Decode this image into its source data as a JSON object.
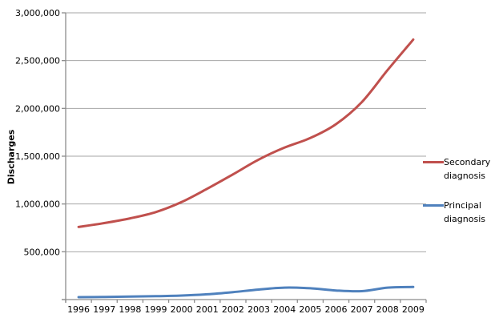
{
  "chart_data": {
    "type": "line",
    "title": "",
    "xlabel": "",
    "ylabel": "Discharges",
    "categories": [
      "1996",
      "1997",
      "1998",
      "1999",
      "2000",
      "2001",
      "2002",
      "2003",
      "2004",
      "2005",
      "2006",
      "2007",
      "2008",
      "2009"
    ],
    "series": [
      {
        "name": "Secondary diagnosis",
        "color": "#C0504D",
        "values": [
          760000,
          800000,
          850000,
          915000,
          1020000,
          1160000,
          1310000,
          1465000,
          1590000,
          1690000,
          1835000,
          2065000,
          2400000,
          2720000
        ]
      },
      {
        "name": "Principal diagnosis",
        "color": "#4F81BD",
        "values": [
          25000,
          28000,
          31000,
          35000,
          42000,
          55000,
          78000,
          105000,
          125000,
          118000,
          95000,
          88000,
          125000,
          132000
        ]
      }
    ],
    "ylim": [
      0,
      3000000
    ],
    "yticks": [
      {
        "value": 500000,
        "label": "500,000"
      },
      {
        "value": 1000000,
        "label": "1,000,000"
      },
      {
        "value": 1500000,
        "label": "1,500,000"
      },
      {
        "value": 2000000,
        "label": "2,000,000"
      },
      {
        "value": 2500000,
        "label": "2,500,000"
      },
      {
        "value": 3000000,
        "label": "3,000,000"
      }
    ],
    "grid": true,
    "legend_position": "right",
    "gridline_color": "#A6A6A6",
    "axis_color": "#8C8C8C",
    "text_color": "#000000"
  }
}
